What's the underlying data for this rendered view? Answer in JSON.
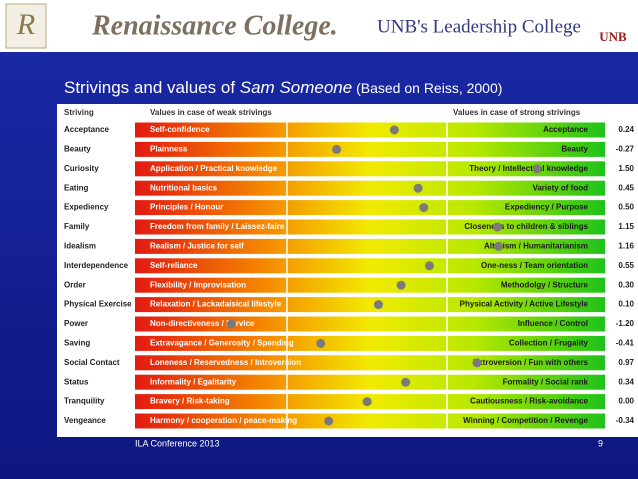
{
  "header": {
    "logo_letter": "R",
    "college": "Renaissance College.",
    "tagline": "UNB's Leadership College",
    "unb": "UNB"
  },
  "chart_data": {
    "type": "dot",
    "title": [
      "Strivings and values of ",
      "Sam Someone",
      " (Based on Reiss, 2000)"
    ],
    "column_headers": [
      "Striving",
      "Values in case of weak strivings",
      "Values in case of strong strivings"
    ],
    "categories": [
      "Acceptance",
      "Beauty",
      "Curiosity",
      "Eating",
      "Expediency",
      "Family",
      "Idealism",
      "Interdependence",
      "Order",
      "Physical Exercise",
      "Power",
      "Saving",
      "Social Contact",
      "Status",
      "Tranquility",
      "Vengeance"
    ],
    "weak_labels": [
      "Self-confidence",
      "Plainness",
      "Application / Practical knowledge",
      "Nutritional basics",
      "Principles / Honour",
      "Freedom from family / Laissez-faire",
      "Realism / Justice for self",
      "Self-reliance",
      "Flexibility / Improvisation",
      "Relaxation / Lackadaisical lifestyle",
      "Non-directiveness / Service",
      "Extravagance / Generosity / Spending",
      "Loneness / Reservedness / Introversion",
      "Informality / Egalitarity",
      "Bravery / Risk-taking",
      "Harmony / cooperation / peace-making"
    ],
    "strong_labels": [
      "Acceptance",
      "Beauty",
      "Theory / Intellectual knowledge",
      "Variety of food",
      "Expediency / Purpose",
      "Closeness to children & siblings",
      "Altruism / Humanitarianism",
      "One-ness / Team orientation",
      "Methodolgy / Structure",
      "Physical Activity / Active Lifestyle",
      "Influence / Control",
      "Collection / Frugality",
      "Extroversion / Fun with others",
      "Formality / Social rank",
      "Cautiousness / Risk-avoidance",
      "Winning / Competition / Revenge"
    ],
    "values": [
      0.24,
      -0.27,
      1.5,
      0.45,
      0.5,
      1.15,
      1.16,
      0.55,
      0.3,
      0.1,
      -1.2,
      -0.41,
      0.97,
      0.34,
      0.0,
      -0.34
    ],
    "value_labels": [
      "0.24",
      "-0.27",
      "1.50",
      "0.45",
      "0.50",
      "1.15",
      "1.16",
      "0.55",
      "0.30",
      "0.10",
      "-1.20",
      "-0.41",
      "0.97",
      "0.34",
      "0.00",
      "-0.34"
    ],
    "xlim": [
      -2.05,
      2.1
    ],
    "color": "#7a7a7a"
  },
  "footer": {
    "event": "ILA Conference 2013",
    "page": "9"
  }
}
